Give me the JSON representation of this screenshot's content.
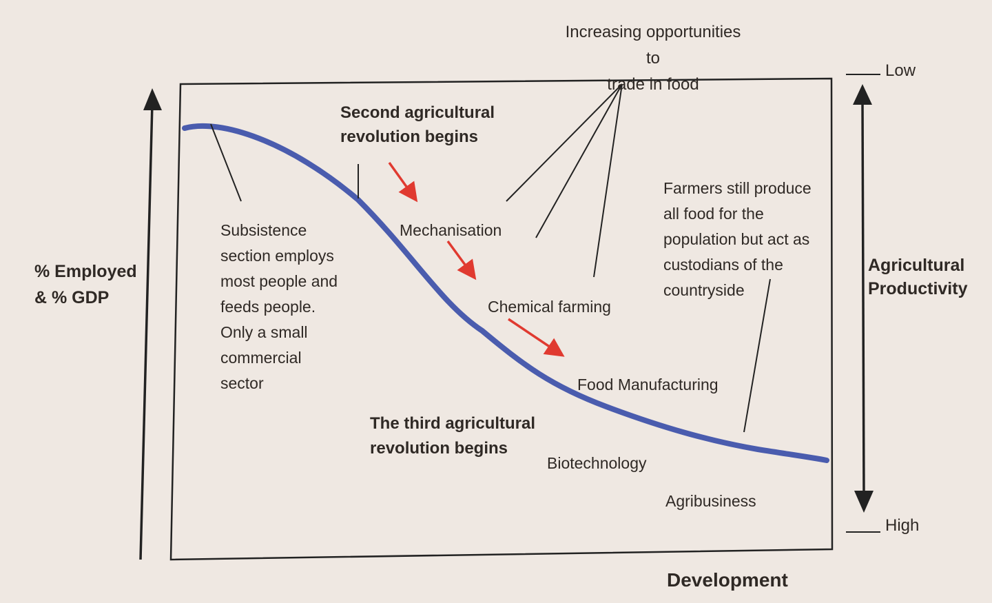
{
  "y_axis_label": "% Employed\n& % GDP",
  "x_axis_label": "Development",
  "right_axis": {
    "label": "Agricultural\nProductivity",
    "top_label": "Low",
    "bottom_label": "High"
  },
  "annotations": {
    "trade": "Increasing opportunities to\ntrade in food",
    "second_revolution": "Second agricultural\nrevolution begins",
    "subsistence": "Subsistence\nsection employs\nmost people and\nfeeds people.\nOnly a small\ncommercial\nsector",
    "mechanisation": "Mechanisation",
    "chemical_farming": "Chemical farming",
    "food_manufacturing": "Food Manufacturing",
    "farmers": "Farmers still produce\nall food for the\npopulation but act as\ncustodians of the\ncountryside",
    "third_revolution": "The third agricultural\nrevolution begins",
    "biotechnology": "Biotechnology",
    "agribusiness": "Agribusiness"
  },
  "colors": {
    "background": "#efe8e2",
    "curve": "#4a5cae",
    "red_arrows": "#e03a30",
    "ink": "#222222"
  }
}
